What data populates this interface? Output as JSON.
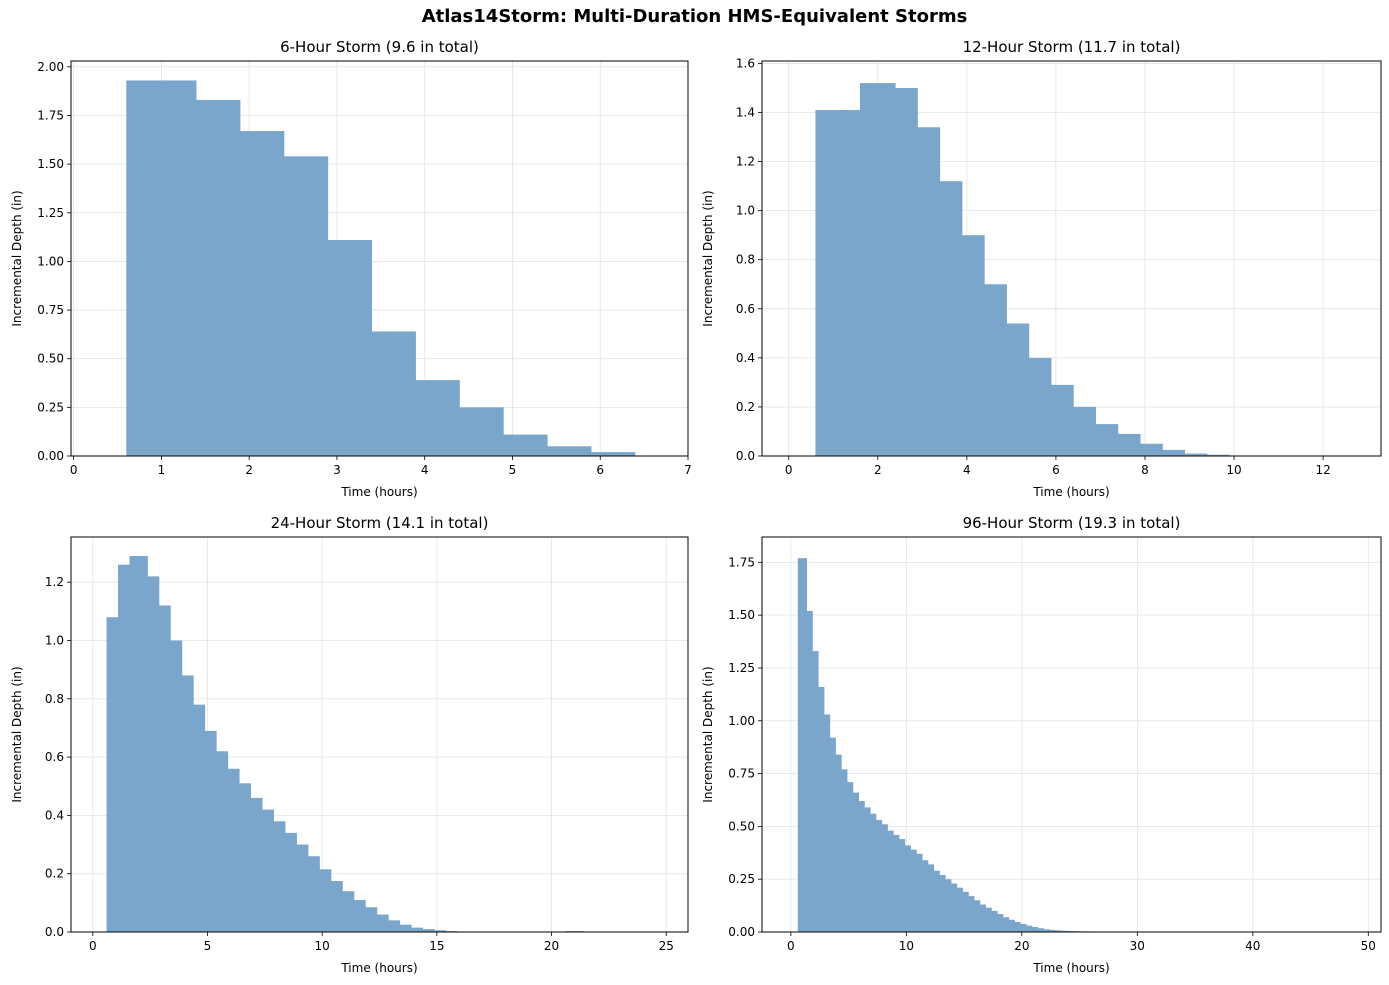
{
  "suptitle": "Atlas14Storm: Multi-Duration HMS-Equivalent Storms",
  "bar_color": "#7ba6cb",
  "chart_data": [
    {
      "type": "bar",
      "title": "6-Hour Storm (9.6 in total)",
      "xlabel": "Time (hours)",
      "ylabel": "Incremental Depth (in)",
      "xlim": [
        -0.03,
        7.0
      ],
      "ylim": [
        0,
        2.03
      ],
      "xticks": [
        0,
        1,
        2,
        3,
        4,
        5,
        6,
        7
      ],
      "xtick_labels": [
        "0",
        "1",
        "2",
        "3",
        "4",
        "5",
        "6",
        "7"
      ],
      "yticks": [
        0,
        0.25,
        0.5,
        0.75,
        1.0,
        1.25,
        1.5,
        1.75,
        2.0
      ],
      "ytick_labels": [
        "0.00",
        "0.25",
        "0.50",
        "0.75",
        "1.00",
        "1.25",
        "1.50",
        "1.75",
        "2.00"
      ],
      "grid": true,
      "bar_width": 0.4,
      "x": [
        0.5,
        1.0,
        1.5,
        2.0,
        2.5,
        3.0,
        3.5,
        4.0,
        4.5,
        5.0,
        5.5,
        6.0,
        6.5
      ],
      "values": [
        0,
        1.93,
        1.83,
        1.67,
        1.54,
        1.11,
        0.64,
        0.39,
        0.25,
        0.11,
        0.05,
        0.02,
        0.0
      ]
    },
    {
      "type": "bar",
      "title": "12-Hour Storm (11.7 in total)",
      "xlabel": "Time (hours)",
      "ylabel": "Incremental Depth (in)",
      "xlim": [
        -0.6,
        13.3
      ],
      "ylim": [
        0,
        1.61
      ],
      "xticks": [
        0,
        2,
        4,
        6,
        8,
        10,
        12
      ],
      "xtick_labels": [
        "0",
        "2",
        "4",
        "6",
        "8",
        "10",
        "12"
      ],
      "yticks": [
        0,
        0.2,
        0.4,
        0.6,
        0.8,
        1.0,
        1.2,
        1.4,
        1.6
      ],
      "ytick_labels": [
        "0.0",
        "0.2",
        "0.4",
        "0.6",
        "0.8",
        "1.0",
        "1.2",
        "1.4",
        "1.6"
      ],
      "grid": true,
      "bar_width": 0.4,
      "x": [
        0.5,
        1.0,
        1.5,
        2.0,
        2.5,
        3.0,
        3.5,
        4.0,
        4.5,
        5.0,
        5.5,
        6.0,
        6.5,
        7.0,
        7.5,
        8.0,
        8.5,
        9.0,
        9.5,
        10.0,
        10.5,
        11.0,
        11.5,
        12.0,
        12.5
      ],
      "values": [
        0,
        1.41,
        1.41,
        1.52,
        1.5,
        1.34,
        1.12,
        0.9,
        0.7,
        0.54,
        0.4,
        0.29,
        0.2,
        0.13,
        0.09,
        0.05,
        0.025,
        0.01,
        0.005,
        0,
        0,
        0,
        0,
        0,
        0
      ]
    },
    {
      "type": "bar",
      "title": "24-Hour Storm (14.1 in total)",
      "xlabel": "Time (hours)",
      "ylabel": "Incremental Depth (in)",
      "xlim": [
        -0.95,
        25.95
      ],
      "ylim": [
        0,
        1.355
      ],
      "xticks": [
        0,
        5,
        10,
        15,
        20,
        25
      ],
      "xtick_labels": [
        "0",
        "5",
        "10",
        "15",
        "20",
        "25"
      ],
      "yticks": [
        0,
        0.2,
        0.4,
        0.6,
        0.8,
        1.0,
        1.2
      ],
      "ytick_labels": [
        "0.0",
        "0.2",
        "0.4",
        "0.6",
        "0.8",
        "1.0",
        "1.2"
      ],
      "grid": true,
      "bar_width": 0.4,
      "x": [
        1.0,
        1.5,
        2.0,
        2.5,
        3.0,
        3.5,
        4.0,
        4.5,
        5.0,
        5.5,
        6.0,
        6.5,
        7.0,
        7.5,
        8.0,
        8.5,
        9.0,
        9.5,
        10.0,
        10.5,
        11.0,
        11.5,
        12.0,
        12.5,
        13.0,
        13.5,
        14.0,
        14.5,
        15.0,
        15.5,
        21.0
      ],
      "values": [
        1.08,
        1.26,
        1.29,
        1.22,
        1.12,
        1.0,
        0.88,
        0.78,
        0.69,
        0.62,
        0.56,
        0.51,
        0.46,
        0.42,
        0.38,
        0.34,
        0.3,
        0.26,
        0.215,
        0.175,
        0.14,
        0.11,
        0.085,
        0.06,
        0.04,
        0.025,
        0.015,
        0.01,
        0.006,
        0.003,
        0.003
      ]
    },
    {
      "type": "bar",
      "title": "96-Hour Storm (19.3 in total)",
      "xlabel": "Time (hours)",
      "ylabel": "Incremental Depth (in)",
      "xlim": [
        -2.5,
        51.1
      ],
      "ylim": [
        0,
        1.87
      ],
      "xticks": [
        0,
        10,
        20,
        30,
        40,
        50
      ],
      "xtick_labels": [
        "0",
        "10",
        "20",
        "30",
        "40",
        "50"
      ],
      "yticks": [
        0,
        0.25,
        0.5,
        0.75,
        1.0,
        1.25,
        1.5,
        1.75
      ],
      "ytick_labels": [
        "0.00",
        "0.25",
        "0.50",
        "0.75",
        "1.00",
        "1.25",
        "1.50",
        "1.75"
      ],
      "grid": true,
      "bar_width": 0.4,
      "x": [
        1.0,
        1.5,
        2.0,
        2.5,
        3.0,
        3.5,
        4.0,
        4.5,
        5.0,
        5.5,
        6.0,
        6.5,
        7.0,
        7.5,
        8.0,
        8.5,
        9.0,
        9.5,
        10.0,
        10.5,
        11.0,
        11.5,
        12.0,
        12.5,
        13.0,
        13.5,
        14.0,
        14.5,
        15.0,
        15.5,
        16.0,
        16.5,
        17.0,
        17.5,
        18.0,
        18.5,
        19.0,
        19.5,
        20.0,
        20.5,
        21.0,
        21.5,
        22.0,
        22.5,
        23.0,
        23.5,
        24.0,
        24.5,
        25.0,
        25.5,
        26.0,
        26.5,
        33.0
      ],
      "values": [
        1.77,
        1.52,
        1.33,
        1.16,
        1.03,
        0.92,
        0.84,
        0.77,
        0.71,
        0.66,
        0.62,
        0.59,
        0.56,
        0.53,
        0.51,
        0.48,
        0.46,
        0.44,
        0.41,
        0.39,
        0.37,
        0.34,
        0.32,
        0.29,
        0.27,
        0.25,
        0.23,
        0.21,
        0.19,
        0.17,
        0.15,
        0.13,
        0.115,
        0.1,
        0.085,
        0.07,
        0.058,
        0.047,
        0.038,
        0.03,
        0.024,
        0.018,
        0.013,
        0.01,
        0.008,
        0.006,
        0.005,
        0.004,
        0.003,
        0.003,
        0.002,
        0.002,
        0.002
      ]
    }
  ]
}
